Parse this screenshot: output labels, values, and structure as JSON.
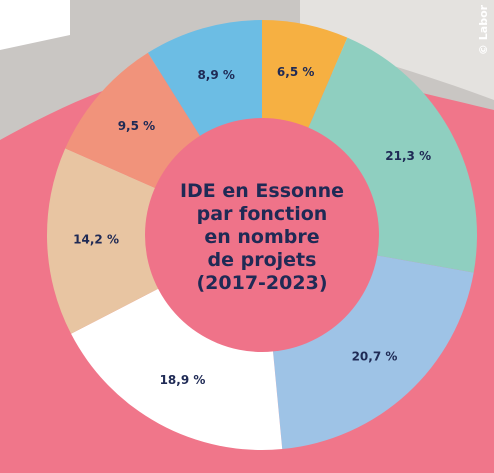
{
  "chart_data": {
    "type": "donut",
    "title": "IDE en Essonne\npar fonction\nen nombre\nde projets\n(2017-2023)",
    "credit": "© Labor",
    "values": [
      6.5,
      21.3,
      20.7,
      18.9,
      14.2,
      9.5,
      8.9
    ],
    "value_labels": [
      "6,5 %",
      "21,3 %",
      "20,7 %",
      "18,9 %",
      "14,2 %",
      "9,5 %",
      "8,9 %"
    ],
    "colors": [
      "#f6b042",
      "#8fcfc0",
      "#9ec3e6",
      "#ffffff",
      "#e8c5a2",
      "#f1937b",
      "#6cbde4"
    ]
  }
}
